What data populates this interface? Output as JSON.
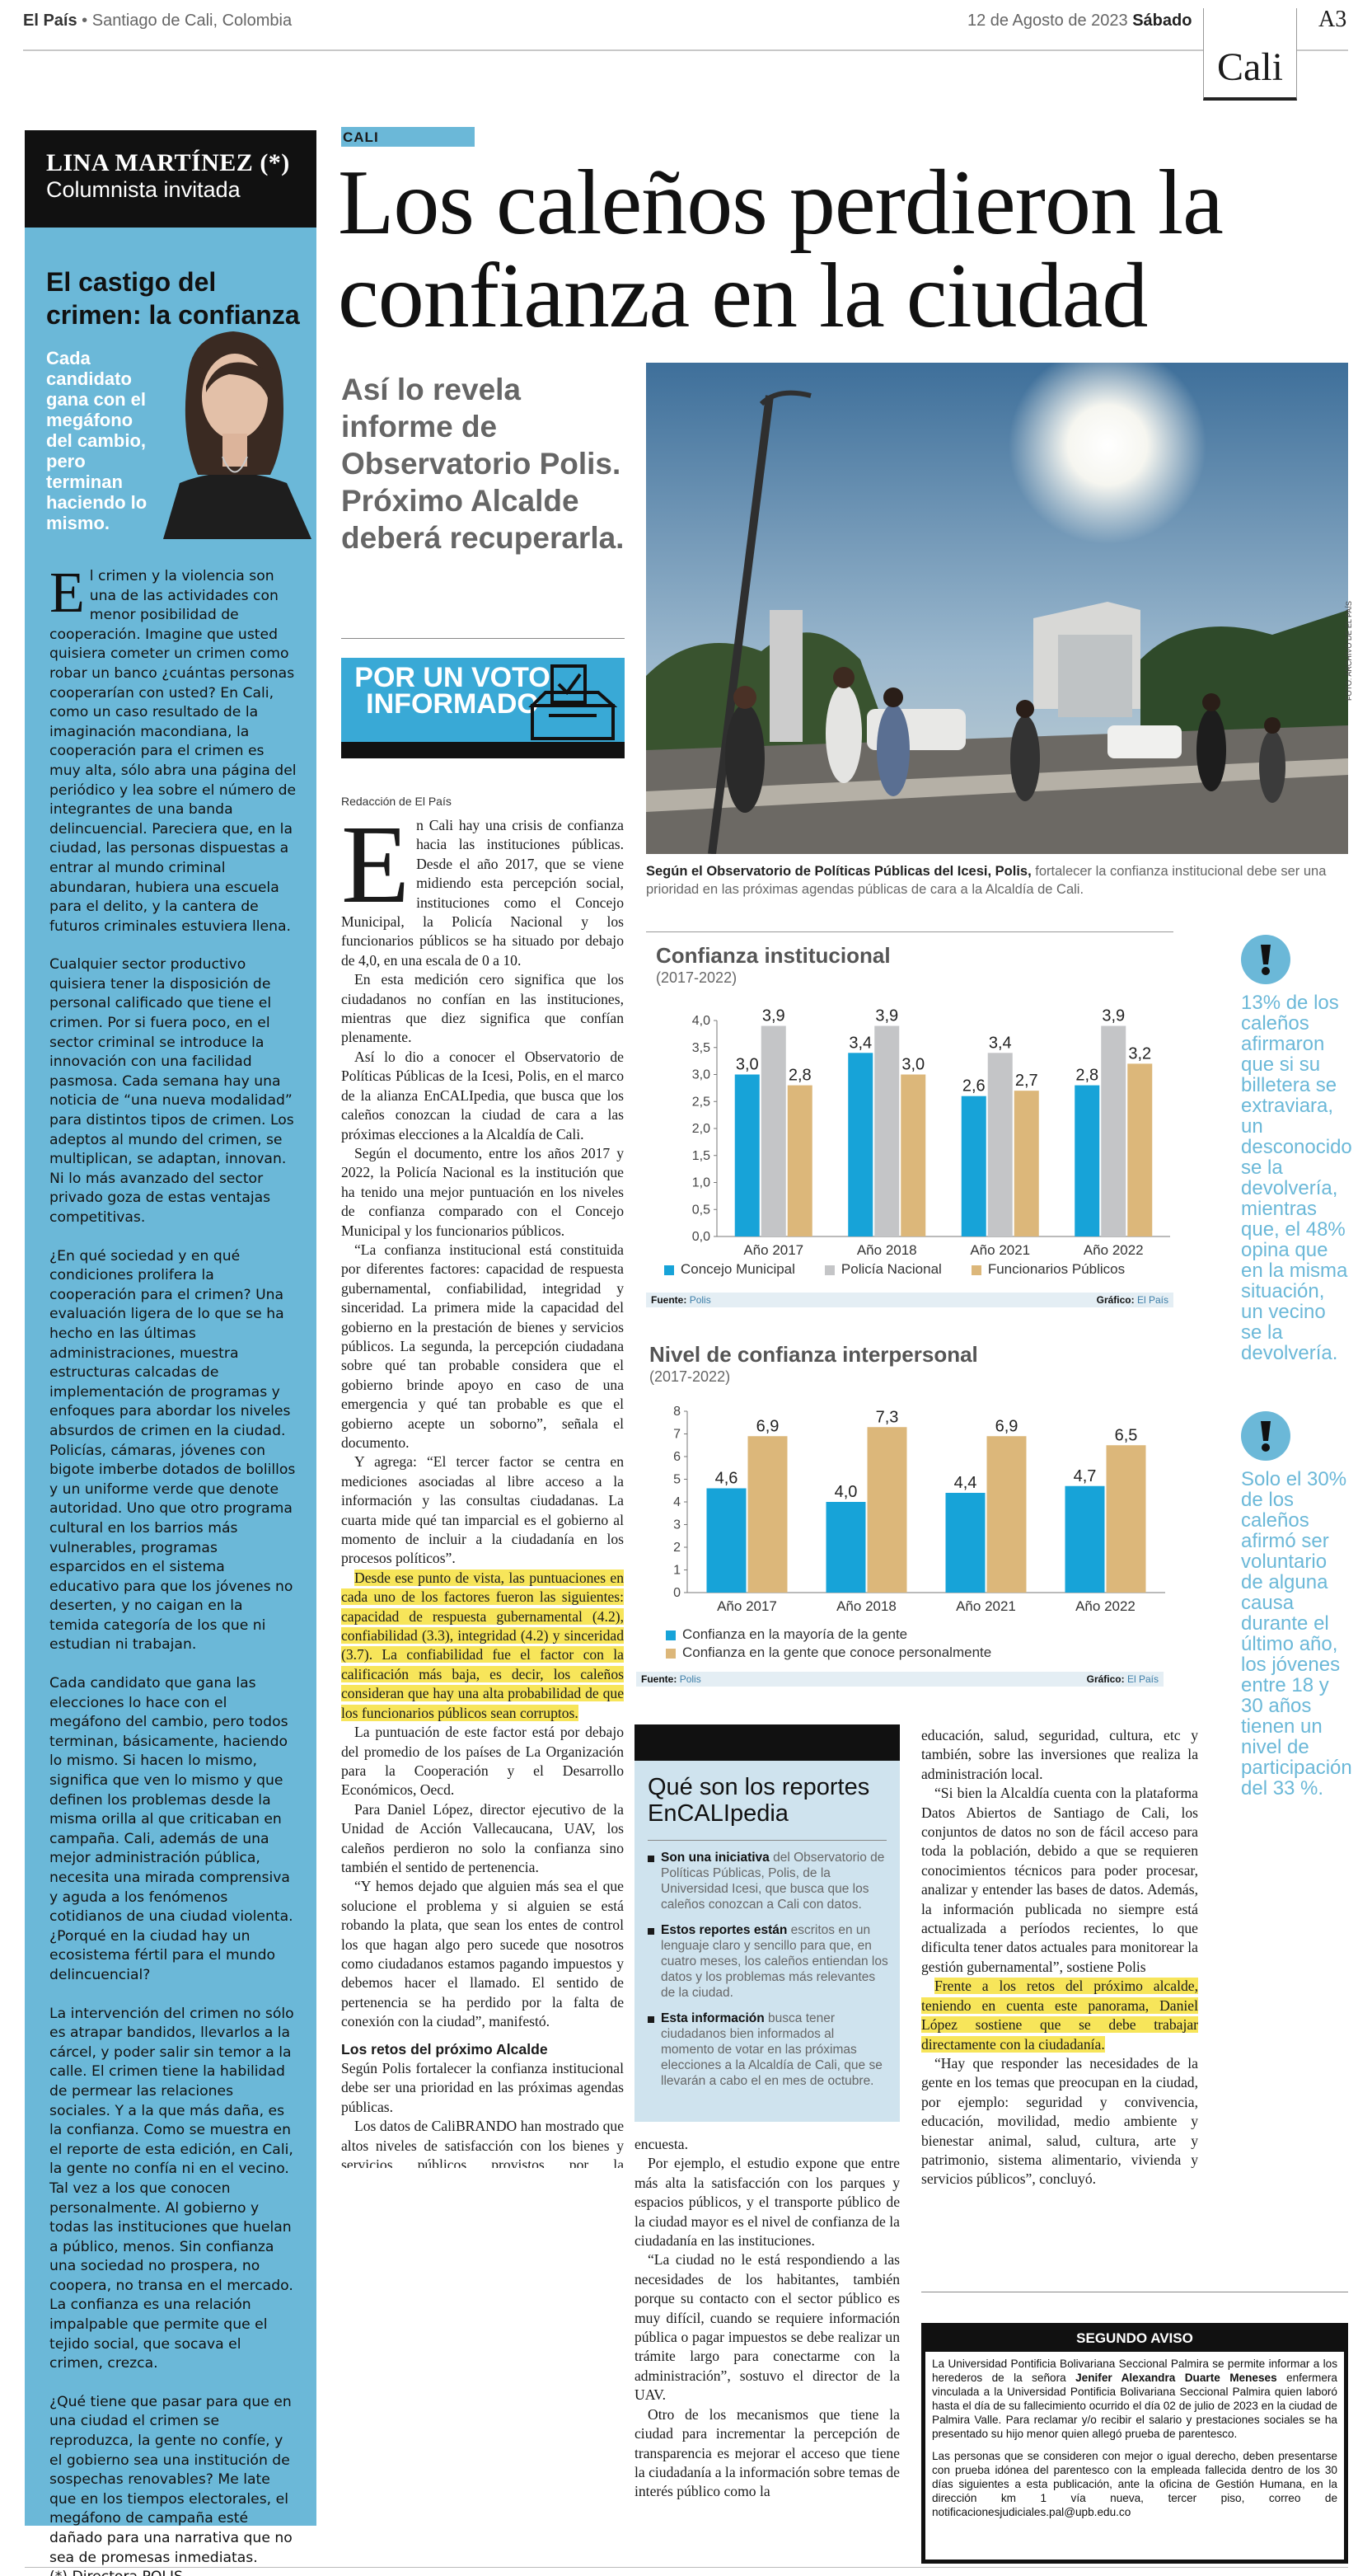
{
  "header": {
    "paper": "El País",
    "city": " • Santiago de Cali, Colombia",
    "date": "12 de Agosto de 2023",
    "day": "Sábado",
    "section": "Cali",
    "page": "A3"
  },
  "column": {
    "author": "LINA MARTÍNEZ (*)",
    "role": "Columnista invitada",
    "title": "El castigo del crimen: la confianza",
    "deck": "Cada candidato gana con el megáfono del cambio, pero terminan haciendo lo mismo.",
    "dropcap": "E",
    "p1": "l crimen y la violencia son una de las actividades con menor posibilidad de cooperación. Imagine que usted quisiera cometer un crimen como robar un banco ¿cuántas personas cooperarían con usted? En Cali, como un caso resultado de la imaginación macondiana, la cooperación para el crimen es muy alta, sólo abra una página del periódico y lea sobre el número de integrantes de una banda delincuencial. Pareciera que, en la ciudad, las personas dispuestas a entrar al mundo criminal abundaran, hubiera una escuela para el delito, y la cantera de futuros criminales estuviera llena.",
    "p2": "Cualquier sector productivo quisiera tener la disposición de personal calificado que tiene el crimen. Por si fuera poco, en el sector criminal se introduce la innovación con una facilidad pasmosa. Cada semana hay una noticia de “una nueva modalidad” para distintos tipos de crimen. Los adeptos al mundo del crimen, se multiplican, se adaptan, innovan. Ni lo más avanzado del sector privado goza de estas ventajas competitivas.",
    "p3": "¿En qué sociedad y en qué condiciones prolifera la cooperación para el crimen? Una evaluación ligera de lo que se ha hecho en las últimas administraciones, muestra estructuras calcadas de implementación de programas y enfoques para abordar los niveles absurdos de crimen en la ciudad. Policías, cámaras, jóvenes con bigote imberbe dotados de bolillos y un uniforme verde que denote autoridad. Uno que otro programa cultural en los barrios más vulnerables, programas esparcidos en el sistema educativo para que los jóvenes no deserten, y no caigan en la temida categoría de los que ni estudian ni trabajan.",
    "p4": "Cada candidato que gana las elecciones lo hace con el megáfono del cambio, pero todos terminan, básicamente, haciendo lo mismo. Si hacen lo mismo, significa que ven lo mismo y que definen los problemas desde la misma orilla al que criticaban en campaña. Cali, además de una mejor administración pública, necesita una mirada comprensiva y aguda a los fenómenos cotidianos de una ciudad violenta. ¿Porqué en la ciudad hay un ecosistema fértil para el mundo delincuencial?",
    "p5": "La intervención del crimen no sólo es atrapar bandidos, llevarlos a la cárcel, y poder salir sin temor a la calle. El crimen tiene la habilidad de permear las relaciones sociales. Y a la que más daña, es la confianza. Como se muestra en el reporte de esta edición, en Cali, la gente no confía ni en el vecino. Tal vez a los que conocen personalmente. Al gobierno y todas las instituciones que huelan a público, menos. Sin confianza una sociedad no prospera, no coopera, no transa en el mercado. La confianza es una relación impalpable que permite que el tejido social, que socava el crimen, crezca.",
    "p6": "¿Qué tiene que pasar para que en una ciudad el crimen se reproduzca, la gente no confíe, y el gobierno sea una institución de sospechas renovables? Me late que en los tiempos electorales, el megáfono de campaña esté dañado para una narrativa que no sea de promesas inmediatas.",
    "sig": "(*) Directora POLIS"
  },
  "article": {
    "kicker": "CALI",
    "headline": "Los caleños perdieron la confianza en la ciudad",
    "subhead": "Así lo revela informe de Observatorio Polis. Próximo Alcalde deberá recuperarla.",
    "badge": "POR UN VOTO INFORMADO",
    "byline": "Redacción de El País",
    "dropcap": "E",
    "lead": "n Cali hay una crisis de confianza hacia las instituciones públicas. Desde el año 2017, que se viene midiendo esta percepción social, instituciones como el Concejo Municipal, la Policía Nacional y los funcionarios públicos se ha situado por debajo de 4,0, en una escala de 0 a 10.",
    "p2": "En esta medición cero significa que los ciudadanos no confían en las instituciones, mientras que diez significa que confían plenamente.",
    "p3": "Así lo dio a conocer el Observatorio de Políticas Públicas de la Icesi, Polis, en el marco de la alianza EnCALIpedia, que busca que los caleños conozcan la ciudad de cara a las próximas elecciones a la Alcaldía de Cali.",
    "p4": "Según el documento, entre los años 2017 y 2022, la Policía Nacional es la institución que ha tenido una mejor puntuación en los niveles de confianza comparado con el Concejo Municipal y los funcionarios públicos.",
    "p5": "“La confianza institucional está constituida por diferentes factores: capacidad de respuesta gubernamental, confiabilidad, integridad y sinceridad. La primera mide la capacidad del gobierno en la prestación de bienes y servicios públicos. La segunda, la percepción ciudadana sobre qué tan probable considera que el gobierno brinde apoyo en caso de una emergencia y qué tan probable es que el gobierno acepte un soborno”, señala el documento.",
    "p6": "Y agrega: “El tercer factor se centra en mediciones asociadas al libre acceso a la información y las consultas ciudadanas. La cuarta mide qué tan imparcial es el gobierno al momento de incluir a la ciudadanía en los procesos políticos”.",
    "p7": "Desde ese punto de vista, las puntuaciones en cada uno de los factores fueron las siguientes: capacidad de respuesta gubernamental (4.2), confiabilidad (3.3), integridad (4.2) y sinceridad (3.7). La confiabilidad fue el factor con la calificación más baja, es decir, los caleños consideran que hay una alta probabilidad de que los funcionarios públicos sean corruptos.",
    "p8": "La puntuación de este factor está por debajo del promedio de los países de La Organización para la Cooperación y el Desarrollo Económicos, Oecd.",
    "p9": "Para Daniel López, director ejecutivo de la Unidad de Acción Vallecaucana, UAV, los caleños perdieron no solo la confianza sino también el sentido de pertenencia.",
    "p10": "“Y hemos dejado que alguien más sea el que solucione el problema y si alguien se está robando la plata, que sean los entes de control los que hagan algo pero sucede que nosotros como ciudadanos estamos pagando impuestos y debemos hacer el llamado. El sentido de pertenencia se ha perdido por la falta de conexión con la ciudad”, manifestó.",
    "subtitle": "Los retos del próximo Alcalde",
    "p11": "Según Polis fortalecer la confianza institucional debe ser una prioridad en las próximas agendas públicas.",
    "p12": "Los datos de CaliBRANDO han mostrado que altos niveles de satisfacción con los bienes y servicios públicos provistos por la administración local están relacionados con mayores niveles de confianza en las instituciones públicas. Esta tendencia se ha sostenido en todos los años de recolección de la",
    "p13": "encuesta.",
    "p14": "Por ejemplo, el estudio expone que entre más alta la satisfacción con los parques y espacios públicos, y el transporte público de la ciudad mayor es el nivel de confianza de la ciudadanía en las instituciones.",
    "p15": "“La ciudad no le está respondiendo a las necesidades de los habitantes, también porque su contacto con el sector público es muy difícil, cuando se requiere información pública o pagar impuestos se debe realizar un trámite largo para conectarme con la administración”, sostuvo el director de la UAV.",
    "p16": "Otro de los mecanismos que tiene la ciudad para incrementar la percepción de transparencia es mejorar el acceso que tiene la ciudadanía a la información sobre temas de interés público como la",
    "p17": "educación, salud, seguridad, cultura, etc y también, sobre las inversiones que realiza la administración local.",
    "p18": "“Si bien la Alcaldía cuenta con la plataforma Datos Abiertos de Santiago de Cali, los conjuntos de datos no son de fácil acceso para toda la población, debido a que se requieren conocimientos técnicos para poder procesar, analizar y entender las bases de datos. Además, la información publicada no siempre está actualizada a períodos recientes, lo que dificulta tener datos actuales para monitorear la gestión gubernamental”, sostiene Polis",
    "p19": "Frente a los retos del próximo alcalde, teniendo en cuenta este panorama, Daniel López sostiene que se debe trabajar directamente con la ciudadanía.",
    "p20": "“Hay que responder las necesidades de la gente en los temas que preocupan en la ciudad, por ejemplo: seguridad y convivencia, educación, movilidad, medio ambiente y bienestar animal, salud, cultura, arte y patrimonio, sistema alimentario, vivienda y servicios públicos”, concluyó."
  },
  "photo": {
    "caption_bold": "Según el Observatorio de Políticas Públicas del Icesi, Polis,",
    "caption_rest": " fortalecer la confianza institucional debe ser una prioridad en las próximas agendas públicas de cara a la Alcaldía de Cali.",
    "credit": "FOTO: ARCHIVO DE EL PAÍS"
  },
  "chart_data": [
    {
      "type": "bar",
      "title": "Confianza institucional",
      "subtitle": "(2017-2022)",
      "categories": [
        "Año 2017",
        "Año 2018",
        "Año 2021",
        "Año 2022"
      ],
      "series": [
        {
          "name": "Concejo Municipal",
          "color": "#17a3d8",
          "values": [
            3.0,
            3.4,
            2.6,
            2.8
          ],
          "labels": [
            "3,0",
            "3,4",
            "2,6",
            "2,8"
          ]
        },
        {
          "name": "Policía Nacional",
          "color": "#c4c5c7",
          "values": [
            3.9,
            3.9,
            3.4,
            3.9
          ],
          "labels": [
            "3,9",
            "3,9",
            "3,4",
            "3,9"
          ]
        },
        {
          "name": "Funcionarios Públicos",
          "color": "#dcb77a",
          "values": [
            2.8,
            3.0,
            2.7,
            3.2
          ],
          "labels": [
            "2,8",
            "3,0",
            "2,7",
            "3,2"
          ]
        }
      ],
      "ylim": [
        0,
        4
      ],
      "yticks": [
        "0,0",
        "0,5",
        "1,0",
        "1,5",
        "2,0",
        "2,5",
        "3,0",
        "3,5",
        "4,0"
      ],
      "source_label": "Fuente:",
      "source": "Polis",
      "graphic_label": "Gráfico:",
      "graphic": "El País"
    },
    {
      "type": "bar",
      "title": "Nivel de confianza interpersonal",
      "subtitle": "(2017-2022)",
      "categories": [
        "Año 2017",
        "Año 2018",
        "Año 2021",
        "Año 2022"
      ],
      "series": [
        {
          "name": "Confianza en la mayoría de la gente",
          "color": "#17a3d8",
          "values": [
            4.6,
            4.0,
            4.4,
            4.7
          ],
          "labels": [
            "4,6",
            "4,0",
            "4,4",
            "4,7"
          ]
        },
        {
          "name": "Confianza en la gente que conoce personalmente",
          "color": "#dcb77a",
          "values": [
            6.9,
            7.3,
            6.9,
            6.5
          ],
          "labels": [
            "6,9",
            "7,3",
            "6,9",
            "6,5"
          ]
        }
      ],
      "ylim": [
        0,
        8
      ],
      "yticks": [
        "0",
        "1",
        "2",
        "3",
        "4",
        "5",
        "6",
        "7",
        "8"
      ],
      "source_label": "Fuente:",
      "source": "Polis",
      "graphic_label": "Gráfico:",
      "graphic": "El País"
    }
  ],
  "facts": [
    "13% de los caleños afirmaron que si su billetera se extraviara, un desconocido se la devolvería, mientras que, el 48% opina que en la misma situación, un vecino se la devolvería.",
    "Solo el 30% de los caleños afirmó ser voluntario de alguna causa durante el último año, los jóvenes entre 18 y 30 años tienen un nivel de participación del 33 %."
  ],
  "sidebar": {
    "title": "Qué son los reportes EnCALIpedia",
    "items": [
      {
        "bold": "Son una iniciativa",
        "text": " del Observatorio de Políticas Públicas, Polis, de la Universidad Icesi, que busca que los caleños conozcan a Cali con datos."
      },
      {
        "bold": "Estos reportes están",
        "text": " escritos en un lenguaje claro y sencillo para que, en cuatro meses, los caleños entiendan los datos y los problemas más relevantes de la ciudad."
      },
      {
        "bold": "Esta información",
        "text": " busca tener ciudadanos bien informados al momento de votar en las próximas elecciones a la Alcaldía de Cali, que se llevarán a cabo el en mes de octubre."
      }
    ]
  },
  "notice": {
    "title": "SEGUNDO AVISO",
    "p1a": "La Universidad Pontificia Bolivariana Seccional Palmira se permite informar a los herederos de la señora ",
    "p1b": "Jenifer Alexandra Duarte Meneses",
    "p1c": " enfermera vinculada a la Universidad Pontificia Bolivariana Seccional Palmira quien laboró hasta el día de su fallecimiento ocurrido el día 02 de julio de 2023 en la ciudad de Palmira Valle. Para reclamar y/o recibir el salario y prestaciones sociales se ha presentado su hijo menor quien allegó prueba de parentesco.",
    "p2": "Las personas que se consideren con mejor o igual derecho, deben presentarse con prueba idónea del parentesco con la empleada fallecida dentro de los 30 días siguientes a esta publicación, ante la oficina de Gestión Humana, en la dirección km 1 vía nueva, tercer piso, correo de notificacionesjudiciales.pal@upb.edu.co"
  }
}
